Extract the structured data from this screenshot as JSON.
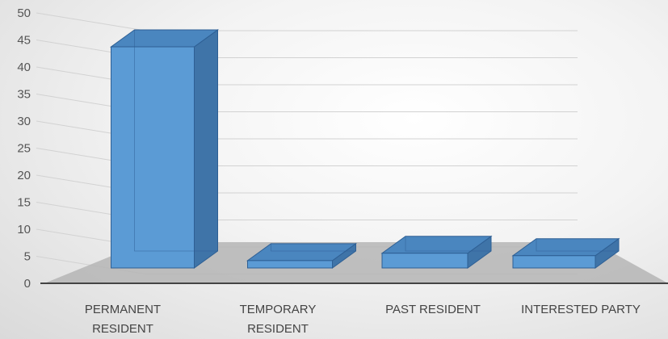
{
  "chart_data": {
    "type": "bar",
    "style": "3d-column",
    "title": "",
    "xlabel": "",
    "ylabel": "",
    "categories": [
      [
        "PERMANENT",
        "RESIDENT"
      ],
      [
        "TEMPORARY",
        "RESIDENT"
      ],
      [
        "PAST RESIDENT"
      ],
      [
        "INTERESTED PARTY"
      ]
    ],
    "values": [
      45,
      1.5,
      3,
      2.5
    ],
    "ylim": [
      0,
      50
    ],
    "yticks": [
      "0",
      "5",
      "10",
      "15",
      "20",
      "25",
      "30",
      "35",
      "40",
      "45",
      "50"
    ],
    "grid": true,
    "legend": "none",
    "colors": {
      "bar_front": "#5b9bd5",
      "bar_top": "#4a86bf",
      "bar_side": "#3f74a8",
      "bar_edge": "#2e5f94",
      "floor": "#b5b5b5",
      "gridline": "#d2d2d2",
      "axis_line": "#444444"
    }
  }
}
